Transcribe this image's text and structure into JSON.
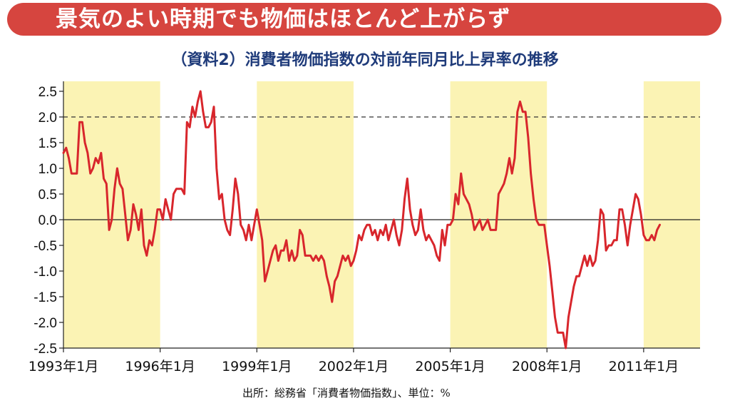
{
  "banner": {
    "title": "景気のよい時期でも物価はほとんど上がらず"
  },
  "source": "出所：総務省「消費者物価指数」、単位：%",
  "colors": {
    "banner": "#d6453f",
    "line": "#d8262c",
    "shade": "#fbf3b4",
    "subtitle": "#1f3b7a"
  },
  "chart_data": {
    "type": "line",
    "title": "（資料2）消費者物価指数の対前年同月比上昇率の推移",
    "xlabel": "",
    "ylabel": "",
    "unit": "%",
    "ylim": [
      -2.5,
      2.5
    ],
    "yticks": [
      "2.5",
      "2.0",
      "1.5",
      "1.0",
      "0.5",
      "0.0",
      "-0.5",
      "-1.0",
      "-1.5",
      "-2.0",
      "-2.5"
    ],
    "xticks": [
      "1993年1月",
      "1996年1月",
      "1999年1月",
      "2002年1月",
      "2005年1月",
      "2008年1月",
      "2011年1月"
    ],
    "reference_line": 2.0,
    "shaded_periods": [
      [
        "1993-01",
        "1996-01"
      ],
      [
        "1999-01",
        "2002-01"
      ],
      [
        "2005-01",
        "2008-01"
      ],
      [
        "2011-01",
        "2012-10"
      ]
    ],
    "series": [
      {
        "name": "",
        "points": [
          [
            "1993-01",
            1.3
          ],
          [
            "1993-02",
            1.4
          ],
          [
            "1993-03",
            1.2
          ],
          [
            "1993-04",
            0.9
          ],
          [
            "1993-05",
            0.9
          ],
          [
            "1993-06",
            0.9
          ],
          [
            "1993-07",
            1.9
          ],
          [
            "1993-08",
            1.9
          ],
          [
            "1993-09",
            1.5
          ],
          [
            "1993-10",
            1.3
          ],
          [
            "1993-11",
            0.9
          ],
          [
            "1993-12",
            1.0
          ],
          [
            "1994-01",
            1.2
          ],
          [
            "1994-02",
            1.1
          ],
          [
            "1994-03",
            1.3
          ],
          [
            "1994-04",
            0.8
          ],
          [
            "1994-05",
            0.7
          ],
          [
            "1994-06",
            -0.2
          ],
          [
            "1994-07",
            0.0
          ],
          [
            "1994-08",
            0.6
          ],
          [
            "1994-09",
            1.0
          ],
          [
            "1994-10",
            0.7
          ],
          [
            "1994-11",
            0.6
          ],
          [
            "1994-12",
            0.1
          ],
          [
            "1995-01",
            -0.4
          ],
          [
            "1995-02",
            -0.2
          ],
          [
            "1995-03",
            0.3
          ],
          [
            "1995-04",
            0.1
          ],
          [
            "1995-05",
            -0.2
          ],
          [
            "1995-06",
            0.2
          ],
          [
            "1995-07",
            -0.5
          ],
          [
            "1995-08",
            -0.7
          ],
          [
            "1995-09",
            -0.4
          ],
          [
            "1995-10",
            -0.5
          ],
          [
            "1995-11",
            -0.2
          ],
          [
            "1995-12",
            0.2
          ],
          [
            "1996-01",
            0.2
          ],
          [
            "1996-02",
            0.0
          ],
          [
            "1996-03",
            0.4
          ],
          [
            "1996-04",
            0.2
          ],
          [
            "1996-05",
            0.0
          ],
          [
            "1996-06",
            0.5
          ],
          [
            "1996-07",
            0.6
          ],
          [
            "1996-08",
            0.6
          ],
          [
            "1996-09",
            0.6
          ],
          [
            "1996-10",
            0.5
          ],
          [
            "1996-11",
            1.9
          ],
          [
            "1996-12",
            1.8
          ],
          [
            "1997-01",
            2.2
          ],
          [
            "1997-02",
            2.0
          ],
          [
            "1997-03",
            2.3
          ],
          [
            "1997-04",
            2.5
          ],
          [
            "1997-05",
            2.1
          ],
          [
            "1997-06",
            1.8
          ],
          [
            "1997-07",
            1.8
          ],
          [
            "1997-08",
            1.9
          ],
          [
            "1997-09",
            2.2
          ],
          [
            "1997-10",
            1.0
          ],
          [
            "1997-11",
            0.4
          ],
          [
            "1997-12",
            0.5
          ],
          [
            "1998-01",
            0.0
          ],
          [
            "1998-02",
            -0.2
          ],
          [
            "1998-03",
            -0.3
          ],
          [
            "1998-04",
            0.2
          ],
          [
            "1998-05",
            0.8
          ],
          [
            "1998-06",
            0.5
          ],
          [
            "1998-07",
            -0.1
          ],
          [
            "1998-08",
            -0.2
          ],
          [
            "1998-09",
            -0.4
          ],
          [
            "1998-10",
            -0.1
          ],
          [
            "1998-11",
            -0.4
          ],
          [
            "1998-12",
            -0.1
          ],
          [
            "1999-01",
            0.2
          ],
          [
            "1999-02",
            -0.1
          ],
          [
            "1999-03",
            -0.4
          ],
          [
            "1999-04",
            -1.2
          ],
          [
            "1999-05",
            -1.0
          ],
          [
            "1999-06",
            -0.8
          ],
          [
            "1999-07",
            -0.6
          ],
          [
            "1999-08",
            -0.5
          ],
          [
            "1999-09",
            -0.8
          ],
          [
            "1999-10",
            -0.6
          ],
          [
            "1999-11",
            -0.6
          ],
          [
            "1999-12",
            -0.4
          ],
          [
            "2000-01",
            -0.8
          ],
          [
            "2000-02",
            -0.6
          ],
          [
            "2000-03",
            -0.8
          ],
          [
            "2000-04",
            -0.7
          ],
          [
            "2000-05",
            -0.2
          ],
          [
            "2000-06",
            -0.3
          ],
          [
            "2000-07",
            -0.7
          ],
          [
            "2000-08",
            -0.7
          ],
          [
            "2000-09",
            -0.7
          ],
          [
            "2000-10",
            -0.8
          ],
          [
            "2000-11",
            -0.7
          ],
          [
            "2000-12",
            -0.8
          ],
          [
            "2001-01",
            -0.7
          ],
          [
            "2001-02",
            -0.8
          ],
          [
            "2001-03",
            -1.1
          ],
          [
            "2001-04",
            -1.3
          ],
          [
            "2001-05",
            -1.6
          ],
          [
            "2001-06",
            -1.2
          ],
          [
            "2001-07",
            -1.1
          ],
          [
            "2001-08",
            -0.9
          ],
          [
            "2001-09",
            -0.7
          ],
          [
            "2001-10",
            -0.8
          ],
          [
            "2001-11",
            -0.7
          ],
          [
            "2001-12",
            -0.9
          ],
          [
            "2002-01",
            -0.8
          ],
          [
            "2002-02",
            -0.6
          ],
          [
            "2002-03",
            -0.3
          ],
          [
            "2002-04",
            -0.4
          ],
          [
            "2002-05",
            -0.2
          ],
          [
            "2002-06",
            -0.1
          ],
          [
            "2002-07",
            -0.1
          ],
          [
            "2002-08",
            -0.3
          ],
          [
            "2002-09",
            -0.2
          ],
          [
            "2002-10",
            -0.4
          ],
          [
            "2002-11",
            -0.2
          ],
          [
            "2002-12",
            -0.3
          ],
          [
            "2003-01",
            -0.1
          ],
          [
            "2003-02",
            -0.4
          ],
          [
            "2003-03",
            -0.2
          ],
          [
            "2003-04",
            0.0
          ],
          [
            "2003-05",
            -0.3
          ],
          [
            "2003-06",
            -0.5
          ],
          [
            "2003-07",
            -0.2
          ],
          [
            "2003-08",
            0.4
          ],
          [
            "2003-09",
            0.8
          ],
          [
            "2003-10",
            0.2
          ],
          [
            "2003-11",
            -0.1
          ],
          [
            "2003-12",
            -0.3
          ],
          [
            "2004-01",
            -0.2
          ],
          [
            "2004-02",
            0.2
          ],
          [
            "2004-03",
            -0.2
          ],
          [
            "2004-04",
            -0.4
          ],
          [
            "2004-05",
            -0.3
          ],
          [
            "2004-06",
            -0.4
          ],
          [
            "2004-07",
            -0.5
          ],
          [
            "2004-08",
            -0.7
          ],
          [
            "2004-09",
            -0.8
          ],
          [
            "2004-10",
            -0.2
          ],
          [
            "2004-11",
            -0.5
          ],
          [
            "2004-12",
            -0.1
          ],
          [
            "2005-01",
            -0.1
          ],
          [
            "2005-02",
            0.0
          ],
          [
            "2005-03",
            0.5
          ],
          [
            "2005-04",
            0.3
          ],
          [
            "2005-05",
            0.9
          ],
          [
            "2005-06",
            0.5
          ],
          [
            "2005-07",
            0.4
          ],
          [
            "2005-08",
            0.3
          ],
          [
            "2005-09",
            0.1
          ],
          [
            "2005-10",
            -0.2
          ],
          [
            "2005-11",
            -0.1
          ],
          [
            "2005-12",
            0.0
          ],
          [
            "2006-01",
            -0.2
          ],
          [
            "2006-02",
            -0.1
          ],
          [
            "2006-03",
            0.0
          ],
          [
            "2006-04",
            -0.2
          ],
          [
            "2006-05",
            -0.2
          ],
          [
            "2006-06",
            -0.2
          ],
          [
            "2006-07",
            0.5
          ],
          [
            "2006-08",
            0.6
          ],
          [
            "2006-09",
            0.7
          ],
          [
            "2006-10",
            0.9
          ],
          [
            "2006-11",
            1.2
          ],
          [
            "2006-12",
            0.9
          ],
          [
            "2007-01",
            1.2
          ],
          [
            "2007-02",
            2.1
          ],
          [
            "2007-03",
            2.3
          ],
          [
            "2007-04",
            2.1
          ],
          [
            "2007-05",
            2.1
          ],
          [
            "2007-06",
            1.6
          ],
          [
            "2007-07",
            0.9
          ],
          [
            "2007-08",
            0.4
          ],
          [
            "2007-09",
            0.0
          ],
          [
            "2007-10",
            -0.1
          ],
          [
            "2007-11",
            -0.1
          ],
          [
            "2007-12",
            -0.1
          ],
          [
            "2008-01",
            -0.5
          ],
          [
            "2008-02",
            -0.9
          ],
          [
            "2008-03",
            -1.4
          ],
          [
            "2008-04",
            -1.9
          ],
          [
            "2008-05",
            -2.2
          ],
          [
            "2008-06",
            -2.2
          ],
          [
            "2008-07",
            -2.2
          ],
          [
            "2008-08",
            -2.5
          ],
          [
            "2008-09",
            -1.9
          ],
          [
            "2008-10",
            -1.6
          ],
          [
            "2008-11",
            -1.3
          ],
          [
            "2008-12",
            -1.1
          ],
          [
            "2009-01",
            -1.1
          ],
          [
            "2009-02",
            -0.9
          ],
          [
            "2009-03",
            -0.7
          ],
          [
            "2009-04",
            -0.9
          ],
          [
            "2009-05",
            -0.7
          ],
          [
            "2009-06",
            -0.9
          ],
          [
            "2009-07",
            -0.8
          ],
          [
            "2009-08",
            -0.4
          ],
          [
            "2009-09",
            0.2
          ],
          [
            "2009-10",
            0.1
          ],
          [
            "2009-11",
            -0.6
          ],
          [
            "2009-12",
            -0.5
          ],
          [
            "2010-01",
            -0.5
          ],
          [
            "2010-02",
            -0.4
          ],
          [
            "2010-03",
            -0.4
          ],
          [
            "2010-04",
            0.2
          ],
          [
            "2010-05",
            0.2
          ],
          [
            "2010-06",
            -0.1
          ],
          [
            "2010-07",
            -0.5
          ],
          [
            "2010-08",
            -0.1
          ],
          [
            "2010-09",
            0.2
          ],
          [
            "2010-10",
            0.5
          ],
          [
            "2010-11",
            0.4
          ],
          [
            "2010-12",
            0.1
          ],
          [
            "2011-01",
            -0.3
          ],
          [
            "2011-02",
            -0.4
          ],
          [
            "2011-03",
            -0.4
          ],
          [
            "2011-04",
            -0.3
          ],
          [
            "2011-05",
            -0.4
          ],
          [
            "2011-06",
            -0.2
          ],
          [
            "2011-07",
            -0.1
          ]
        ]
      }
    ]
  }
}
